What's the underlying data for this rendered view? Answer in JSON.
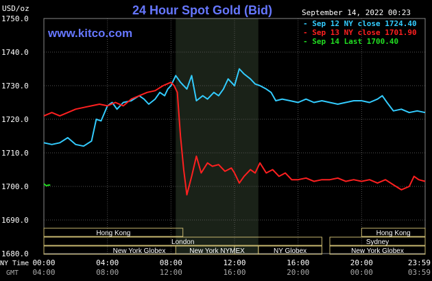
{
  "header": {
    "title": "24 Hour Spot Gold (Bid)",
    "website": "www.kitco.com",
    "timestamp": "September 14, 2022 00:23",
    "unit": "USD/oz"
  },
  "legend": [
    {
      "label": "Sep 12 NY close 1724.40",
      "color": "#33ccff"
    },
    {
      "label": "Sep 13 NY close 1701.90",
      "color": "#ff2020"
    },
    {
      "label": "Sep 14 Last 1700.40",
      "color": "#22dd22"
    }
  ],
  "axis_labels": {
    "ny_time": "NY Time",
    "gmt": "GMT"
  },
  "colors": {
    "background": "#000000",
    "grid": "#555555",
    "highlight_band": "#1a2218",
    "session_box": "#c8b870",
    "axis_text": "#ffffff",
    "title": "#6677ff"
  },
  "sessions": [
    {
      "label": "Hong Kong",
      "start": 0.0,
      "end": 8.75,
      "row": 0
    },
    {
      "label": "London",
      "start": 0.0,
      "end": 17.5,
      "row": 1
    },
    {
      "label": "New York Globex",
      "start": 0.0,
      "end": 12.0,
      "row": 2
    },
    {
      "label": "New York NYMEX",
      "start": 8.3,
      "end": 13.5,
      "row": 2
    },
    {
      "label": "NY Globex",
      "start": 13.5,
      "end": 17.5,
      "row": 2
    },
    {
      "label": "Hong Kong",
      "start": 20.0,
      "end": 24.0,
      "row": 0
    },
    {
      "label": "Sydney",
      "start": 18.0,
      "end": 24.0,
      "row": 1
    },
    {
      "label": "New York Globex",
      "start": 18.0,
      "end": 24.0,
      "row": 2
    }
  ],
  "chart_data": {
    "type": "line",
    "title": "24 Hour Spot Gold (Bid)",
    "ylabel": "USD/oz",
    "xlabel": "NY Time",
    "ylim": [
      1680,
      1750
    ],
    "xlim": [
      0,
      24
    ],
    "y_ticks": [
      "1680.0",
      "1690.0",
      "1700.0",
      "1710.0",
      "1720.0",
      "1730.0",
      "1740.0",
      "1750.0"
    ],
    "y_tick_values": [
      1680,
      1690,
      1700,
      1710,
      1720,
      1730,
      1740,
      1750
    ],
    "x_ticks_ny": [
      "00:00",
      "04:00",
      "08:00",
      "12:00",
      "16:00",
      "20:00",
      "23:59"
    ],
    "x_ticks_gmt": [
      "04:00",
      "08:00",
      "12:00",
      "16:00",
      "20:00",
      "00:00",
      "03:59"
    ],
    "x_tick_values": [
      0,
      4,
      8,
      12,
      16,
      20,
      24
    ],
    "grid": true,
    "highlight_band": [
      8.3,
      13.5
    ],
    "series": [
      {
        "name": "Sep 12 NY close 1724.40",
        "color": "#33ccff",
        "x": [
          0,
          0.5,
          1.0,
          1.5,
          2.0,
          2.5,
          3.0,
          3.3,
          3.6,
          4.0,
          4.3,
          4.6,
          5.0,
          5.5,
          6.0,
          6.3,
          6.6,
          7.0,
          7.3,
          7.6,
          7.8,
          8.0,
          8.3,
          8.6,
          9.0,
          9.3,
          9.6,
          10.0,
          10.3,
          10.7,
          11.0,
          11.3,
          11.6,
          12.0,
          12.3,
          12.6,
          13.0,
          13.3,
          13.6,
          14.0,
          14.3,
          14.6,
          15.0,
          15.5,
          16.0,
          16.5,
          17.0,
          17.5,
          18.0,
          18.5,
          19.0,
          19.5,
          20.0,
          20.5,
          21.0,
          21.3,
          21.6,
          22.0,
          22.5,
          23.0,
          23.5,
          24.0
        ],
        "y": [
          1713,
          1712.5,
          1713,
          1714.5,
          1712.5,
          1712,
          1713.5,
          1720,
          1719.5,
          1724,
          1725,
          1723,
          1725,
          1725.5,
          1727,
          1726,
          1724.5,
          1726,
          1728,
          1727,
          1729,
          1730,
          1733,
          1731,
          1729,
          1733,
          1725.5,
          1727,
          1726,
          1728,
          1727,
          1729,
          1732,
          1730,
          1735,
          1733.5,
          1732,
          1730.5,
          1730,
          1729,
          1728,
          1725.5,
          1726,
          1725.5,
          1725,
          1726,
          1725,
          1725.5,
          1725,
          1724.5,
          1725,
          1725.5,
          1725.5,
          1725,
          1726,
          1727,
          1725,
          1722.5,
          1723,
          1722,
          1722.5,
          1722
        ]
      },
      {
        "name": "Sep 13 NY close 1701.90",
        "color": "#ff2020",
        "x": [
          0,
          0.5,
          1.0,
          1.5,
          2.0,
          2.5,
          3.0,
          3.5,
          4.0,
          4.5,
          5.0,
          5.5,
          6.0,
          6.5,
          7.0,
          7.5,
          8.0,
          8.2,
          8.4,
          8.6,
          8.8,
          9.0,
          9.3,
          9.6,
          9.9,
          10.3,
          10.6,
          11.0,
          11.4,
          11.8,
          12.0,
          12.3,
          12.6,
          13.0,
          13.3,
          13.6,
          14.0,
          14.4,
          14.8,
          15.2,
          15.6,
          16.0,
          16.5,
          17.0,
          17.5,
          18.0,
          18.5,
          19.0,
          19.5,
          20.0,
          20.5,
          21.0,
          21.5,
          22.0,
          22.5,
          23.0,
          23.3,
          23.6,
          24.0
        ],
        "y": [
          1721,
          1722,
          1721,
          1722,
          1723,
          1723.5,
          1724,
          1724.5,
          1724,
          1725,
          1724,
          1726,
          1727,
          1728,
          1728.5,
          1730,
          1731,
          1730,
          1728,
          1715,
          1705,
          1697.5,
          1703,
          1709,
          1704,
          1707,
          1706,
          1706.5,
          1704.5,
          1705.5,
          1704,
          1701,
          1703,
          1705,
          1704,
          1707,
          1704,
          1705,
          1703,
          1704,
          1702,
          1702,
          1702.5,
          1701.5,
          1702,
          1702,
          1702.5,
          1701.5,
          1702,
          1701.5,
          1702,
          1701,
          1702,
          1700.5,
          1699,
          1700,
          1703,
          1702,
          1701.5
        ]
      },
      {
        "name": "Sep 14 Last 1700.40",
        "color": "#22dd22",
        "x": [
          0,
          0.15,
          0.3,
          0.4
        ],
        "y": [
          1700.8,
          1700.2,
          1700.4,
          1700.4
        ]
      }
    ]
  }
}
